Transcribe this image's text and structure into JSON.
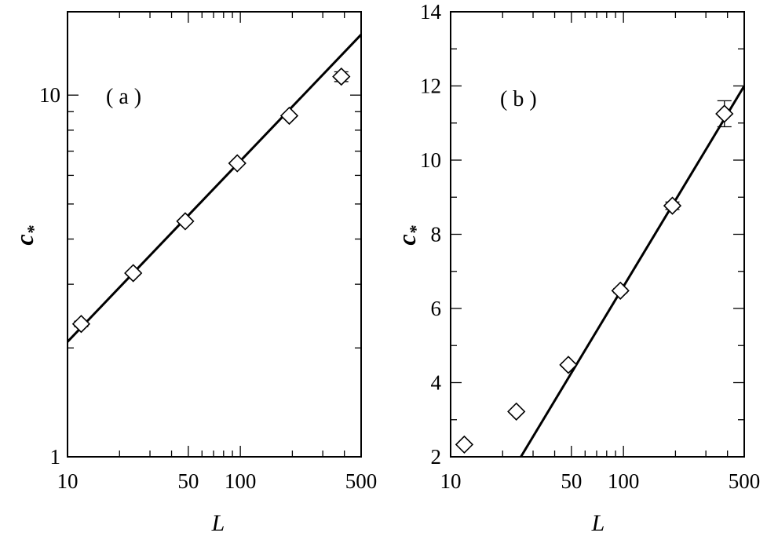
{
  "chart_data": [
    {
      "panel_label": "( a )",
      "type": "scatter",
      "x_scale": "log",
      "y_scale": "log",
      "xlim": [
        10,
        500
      ],
      "ylim": [
        1,
        17
      ],
      "xlabel": "L",
      "ylabel": "c*",
      "x_ticks": [
        10,
        50,
        100,
        500
      ],
      "y_ticks": [
        1,
        10
      ],
      "points": [
        {
          "x": 12,
          "y": 2.33,
          "err": 0.04
        },
        {
          "x": 24,
          "y": 3.22,
          "err": 0.04
        },
        {
          "x": 48,
          "y": 4.48,
          "err": 0.05
        },
        {
          "x": 96,
          "y": 6.48,
          "err": 0.06
        },
        {
          "x": 192,
          "y": 8.77,
          "err": 0.1
        },
        {
          "x": 384,
          "y": 11.25,
          "err": 0.35
        }
      ],
      "fit_line": {
        "x": [
          10,
          500
        ],
        "y": [
          2.08,
          14.7
        ]
      }
    },
    {
      "panel_label": "( b )",
      "type": "scatter",
      "x_scale": "log",
      "y_scale": "linear",
      "xlim": [
        10,
        500
      ],
      "ylim": [
        2,
        14
      ],
      "xlabel": "L",
      "ylabel": "c*",
      "x_ticks": [
        10,
        50,
        100,
        500
      ],
      "y_ticks": [
        2,
        4,
        6,
        8,
        10,
        12,
        14
      ],
      "points": [
        {
          "x": 12,
          "y": 2.33,
          "err": 0.04
        },
        {
          "x": 24,
          "y": 3.22,
          "err": 0.04
        },
        {
          "x": 48,
          "y": 4.48,
          "err": 0.05
        },
        {
          "x": 96,
          "y": 6.48,
          "err": 0.06
        },
        {
          "x": 192,
          "y": 8.77,
          "err": 0.1
        },
        {
          "x": 384,
          "y": 11.25,
          "err": 0.35
        }
      ],
      "fit_line": {
        "x": [
          25.5,
          500
        ],
        "y": [
          2.0,
          12.0
        ]
      }
    }
  ]
}
